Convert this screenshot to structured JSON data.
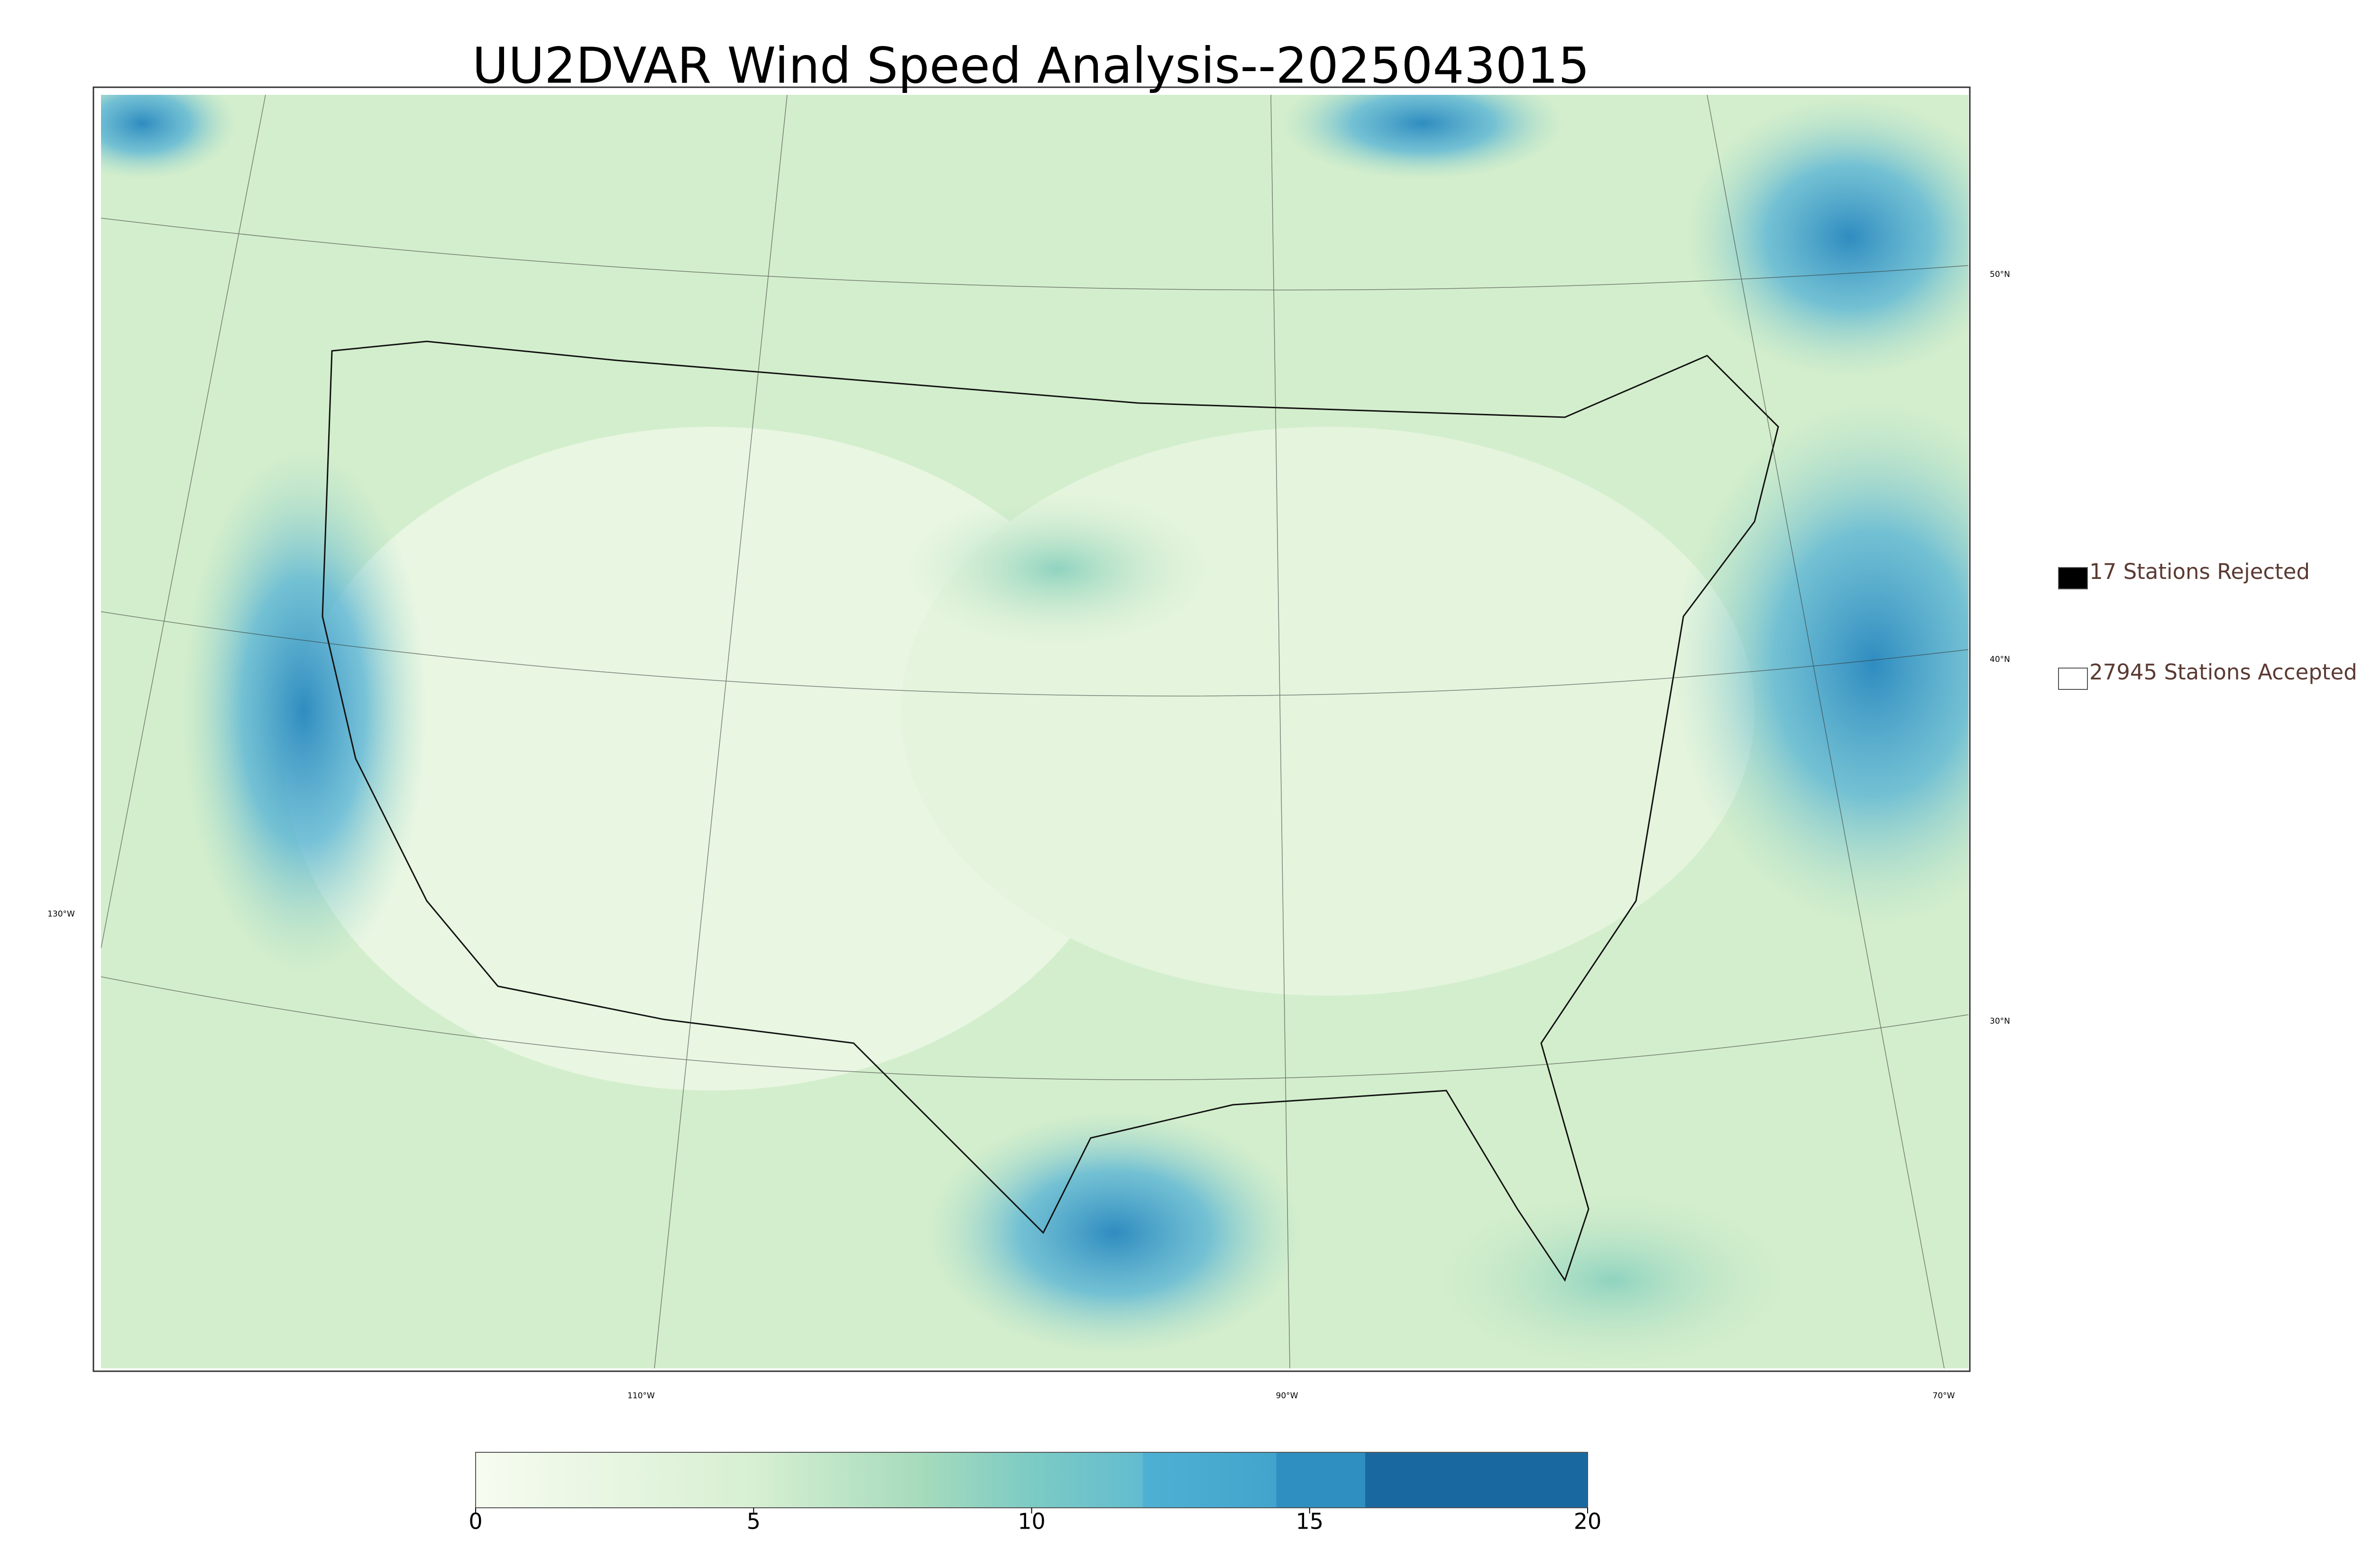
{
  "title": "UU2DVAR Wind Speed Analysis--2025043015",
  "legend": [
    {
      "label": "17 Stations Rejected",
      "color": "#000000"
    },
    {
      "label": "27945 Stations Accepted",
      "color": "#ffffff"
    }
  ],
  "graticule": {
    "latitudes": [
      "50°N",
      "40°N",
      "30°N"
    ],
    "longitudes": [
      "130°W",
      "110°W",
      "90°W",
      "70°W"
    ]
  },
  "colorbar": {
    "lim": [
      0,
      20
    ],
    "ticks": [
      0,
      5,
      10,
      15,
      20
    ]
  }
}
